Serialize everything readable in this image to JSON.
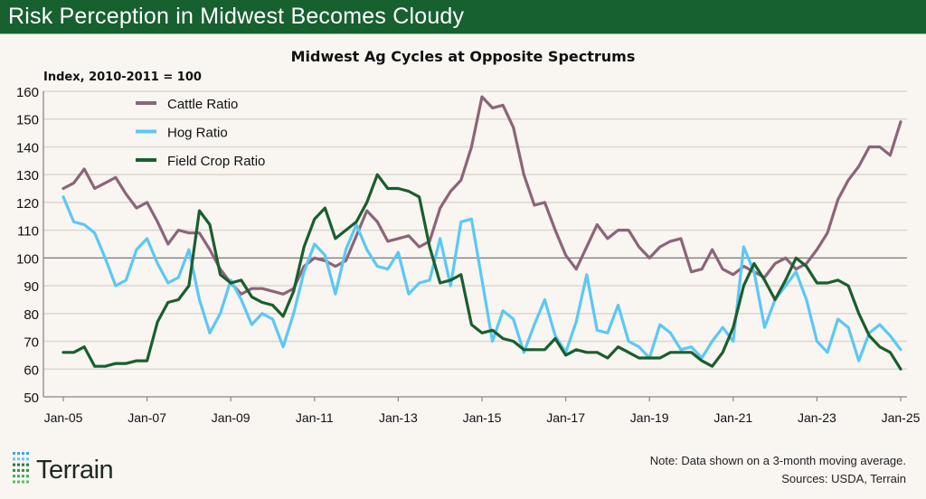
{
  "header": {
    "title": "Risk Perception in Midwest Becomes Cloudy"
  },
  "footer": {
    "logo_text": "Terrain",
    "note": "Note: Data shown on a 3-month moving average.",
    "sources": "Sources: USDA, Terrain"
  },
  "colors": {
    "header_bg": "#17602f",
    "cattle": "#8b6579",
    "hog": "#5bc8f5",
    "field_crop": "#1a5e2e",
    "reference_line": "#777777"
  },
  "chart_data": {
    "type": "line",
    "title": "Midwest Ag Cycles at Opposite Spectrums",
    "ylabel": "Index, 2010-2011 = 100",
    "xlabel": "",
    "ylim": [
      50,
      160
    ],
    "yticks": [
      50,
      60,
      70,
      80,
      90,
      100,
      110,
      120,
      130,
      140,
      150,
      160
    ],
    "xlim": [
      2005,
      2025
    ],
    "xticks": [
      {
        "value": 2005,
        "label": "Jan-05"
      },
      {
        "value": 2007,
        "label": "Jan-07"
      },
      {
        "value": 2009,
        "label": "Jan-09"
      },
      {
        "value": 2011,
        "label": "Jan-11"
      },
      {
        "value": 2013,
        "label": "Jan-13"
      },
      {
        "value": 2015,
        "label": "Jan-15"
      },
      {
        "value": 2017,
        "label": "Jan-17"
      },
      {
        "value": 2019,
        "label": "Jan-19"
      },
      {
        "value": 2021,
        "label": "Jan-21"
      },
      {
        "value": 2023,
        "label": "Jan-23"
      },
      {
        "value": 2025,
        "label": "Jan-25"
      }
    ],
    "reference_line": 100,
    "grid": true,
    "legend": "top-left",
    "x_start": 2005,
    "x_step_years": 0.25,
    "series": [
      {
        "name": "Cattle Ratio",
        "color": "#8b6579",
        "values": [
          125,
          127,
          132,
          125,
          127,
          129,
          123,
          118,
          120,
          113,
          105,
          110,
          109,
          109,
          103,
          96,
          91,
          87,
          89,
          89,
          88,
          87,
          89,
          97,
          100,
          99,
          97,
          99,
          108,
          117,
          113,
          106,
          107,
          108,
          104,
          106,
          118,
          124,
          128,
          140,
          158,
          154,
          155,
          147,
          130,
          119,
          120,
          110,
          101,
          96,
          104,
          112,
          107,
          110,
          110,
          104,
          100,
          104,
          106,
          107,
          95,
          96,
          103,
          96,
          94,
          97,
          95,
          93,
          98,
          100,
          96,
          98,
          103,
          109,
          121,
          128,
          133,
          140,
          140,
          137,
          149
        ]
      },
      {
        "name": "Hog Ratio",
        "color": "#5bc8f5",
        "values": [
          122,
          113,
          112,
          109,
          100,
          90,
          92,
          103,
          107,
          98,
          91,
          93,
          103,
          85,
          73,
          80,
          92,
          85,
          76,
          80,
          78,
          68,
          80,
          95,
          105,
          101,
          87,
          103,
          112,
          103,
          97,
          96,
          102,
          87,
          91,
          92,
          107,
          90,
          113,
          114,
          92,
          70,
          81,
          78,
          66,
          76,
          85,
          72,
          66,
          77,
          94,
          74,
          73,
          83,
          70,
          68,
          64,
          76,
          73,
          67,
          68,
          64,
          70,
          75,
          70,
          104,
          95,
          75,
          85,
          90,
          95,
          85,
          70,
          66,
          78,
          75,
          63,
          73,
          76,
          72,
          67
        ]
      },
      {
        "name": "Field Crop Ratio",
        "color": "#1a5e2e",
        "values": [
          66,
          66,
          68,
          61,
          61,
          62,
          62,
          63,
          63,
          77,
          84,
          85,
          90,
          117,
          112,
          94,
          91,
          92,
          86,
          84,
          83,
          79,
          88,
          104,
          114,
          118,
          107,
          110,
          113,
          120,
          130,
          125,
          125,
          124,
          122,
          104,
          91,
          92,
          94,
          76,
          73,
          74,
          71,
          70,
          67,
          67,
          67,
          71,
          65,
          67,
          66,
          66,
          64,
          68,
          66,
          64,
          64,
          64,
          66,
          66,
          66,
          63,
          61,
          66,
          75,
          90,
          98,
          92,
          85,
          92,
          100,
          97,
          91,
          91,
          92,
          90,
          80,
          72,
          68,
          66,
          60
        ]
      }
    ]
  }
}
